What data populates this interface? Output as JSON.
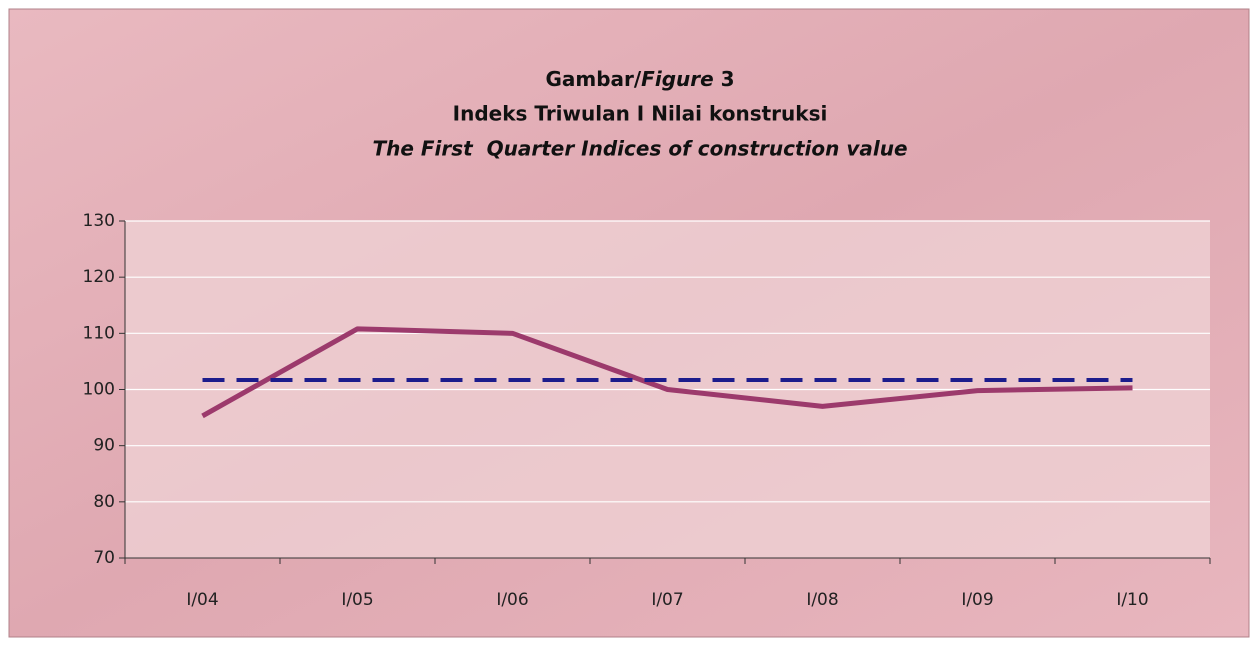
{
  "chart_data": {
    "type": "line",
    "title": [
      [
        "Gambar/",
        "Figure",
        " 3"
      ],
      "Indeks Triwulan I Nilai konstruksi",
      "The First  Quarter Indices of construction value"
    ],
    "categories": [
      "I/04",
      "I/05",
      "I/06",
      "I/07",
      "I/08",
      "I/09",
      "I/10"
    ],
    "series": [
      {
        "color": "#9c3a6c",
        "style": "solid",
        "values": [
          95.3,
          110.8,
          110,
          100,
          97,
          99.8,
          100.3
        ]
      },
      {
        "color": "#1c1c8c",
        "style": "dashed",
        "values": [
          101.7,
          101.7,
          101.7,
          101.7,
          101.7,
          101.7,
          101.7
        ]
      }
    ],
    "ylim": [
      70,
      130
    ],
    "yticks": [
      70,
      80,
      90,
      100,
      110,
      120,
      130
    ],
    "grid": true
  }
}
